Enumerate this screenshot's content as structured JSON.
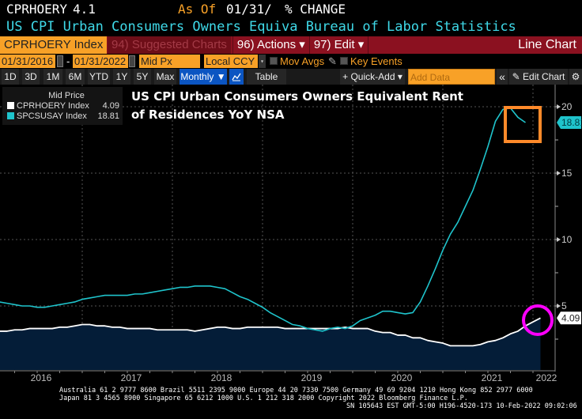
{
  "header": {
    "ticker": "CPRHOERY",
    "value": "4.1",
    "as_of_label": "As Of",
    "as_of_date": "01/31/",
    "change_label": "% CHANGE",
    "description": "US CPI Urban Consumers Owners Equiva Bureau of Labor Statistics"
  },
  "toolbar": {
    "security": "CPRHOERY Index",
    "suggested": "94) Suggested Charts",
    "actions": "96) Actions ▾",
    "edit": "97) Edit ▾",
    "chart_type": "Line Chart",
    "start_date": "01/31/2016",
    "dash": "-",
    "end_date": "01/31/2022",
    "price_field": "Mid Px",
    "currency": "Local CCY",
    "mov_avgs": "Mov Avgs",
    "key_events": "Key Events",
    "periods": [
      "1D",
      "3D",
      "1M",
      "6M",
      "YTD",
      "1Y",
      "5Y",
      "Max"
    ],
    "frequency": "Monthly ▼",
    "table": "Table",
    "quick_add": "+ Quick-Add ▾",
    "add_data_placeholder": "Add Data",
    "collapse": "«",
    "edit_chart": "Edit Chart",
    "icons": {
      "calendar": "calendar-icon",
      "pencil": "pencil-icon",
      "gear": "gear-icon",
      "chart": "line-chart-icon"
    }
  },
  "legend": {
    "title": "Mid Price",
    "items": [
      {
        "name": "CPRHOERY Index",
        "value": "4.09",
        "color": "#ffffff"
      },
      {
        "name": "SPCSUSAY Index",
        "value": "18.81",
        "color": "#1fc4cc"
      }
    ]
  },
  "footer": {
    "line1": "Australia 61 2 9777 8600 Brazil 5511 2395 9000 Europe 44 20 7330 7500 Germany 49 69 9204 1210 Hong Kong 852 2977 6000",
    "line2": "Japan 81 3 4565 8900       Singapore 65 6212 1000       U.S. 1 212 318 2000       Copyright 2022 Bloomberg Finance L.P.",
    "line3": "SN 105643 EST  GMT-5:00 H196-4520-173 10-Feb-2022 09:02:06"
  },
  "annotations": {
    "box_color": "#ff8a2a",
    "circle_color": "#ff00ff"
  },
  "chart_data": {
    "type": "line",
    "title": "US CPI Urban Consumers Owners Equivalent Rent of Residences YoY NSA",
    "frequency": "monthly",
    "x_start": "2016-01",
    "xlabel": "",
    "ylabel": "",
    "x_ticks": [
      "2016",
      "2017",
      "2018",
      "2019",
      "2020",
      "2021",
      "2022"
    ],
    "y_ticks": [
      5,
      10,
      15,
      20
    ],
    "ylim": [
      0,
      21
    ],
    "grid": true,
    "y_axis_side": "right",
    "legend_position": "top-left",
    "series": [
      {
        "name": "CPRHOERY Index",
        "color": "#ffffff",
        "fill": "#041d38",
        "last_value": "4.09",
        "values": [
          3.1,
          3.1,
          3.2,
          3.2,
          3.3,
          3.3,
          3.3,
          3.3,
          3.4,
          3.4,
          3.5,
          3.6,
          3.6,
          3.5,
          3.5,
          3.4,
          3.4,
          3.3,
          3.3,
          3.3,
          3.3,
          3.2,
          3.2,
          3.2,
          3.2,
          3.2,
          3.1,
          3.2,
          3.3,
          3.4,
          3.4,
          3.3,
          3.3,
          3.4,
          3.4,
          3.4,
          3.4,
          3.4,
          3.3,
          3.3,
          3.3,
          3.3,
          3.3,
          3.3,
          3.3,
          3.3,
          3.4,
          3.3,
          3.3,
          3.3,
          3.1,
          3.0,
          3.0,
          2.8,
          2.8,
          2.6,
          2.6,
          2.4,
          2.3,
          2.2,
          2.0,
          2.0,
          2.0,
          2.0,
          2.1,
          2.3,
          2.4,
          2.6,
          2.9,
          3.1,
          3.5,
          3.8,
          4.09
        ]
      },
      {
        "name": "SPCSUSAY Index",
        "color": "#1fc4cc",
        "last_value": "18.81",
        "values": [
          5.3,
          5.2,
          5.1,
          5.0,
          5.0,
          4.9,
          4.9,
          5.0,
          5.1,
          5.2,
          5.3,
          5.5,
          5.6,
          5.7,
          5.8,
          5.8,
          5.8,
          5.8,
          5.9,
          5.9,
          6.0,
          6.1,
          6.2,
          6.3,
          6.4,
          6.4,
          6.5,
          6.5,
          6.5,
          6.4,
          6.3,
          6.0,
          5.7,
          5.5,
          5.2,
          4.9,
          4.5,
          4.2,
          3.9,
          3.6,
          3.5,
          3.3,
          3.2,
          3.1,
          3.3,
          3.4,
          3.3,
          3.5,
          3.9,
          4.1,
          4.3,
          4.6,
          4.6,
          4.5,
          4.4,
          4.5,
          5.3,
          6.5,
          7.8,
          9.2,
          10.4,
          11.3,
          12.5,
          13.7,
          15.3,
          17.0,
          18.9,
          19.8,
          19.9,
          19.2,
          18.81
        ]
      }
    ]
  }
}
